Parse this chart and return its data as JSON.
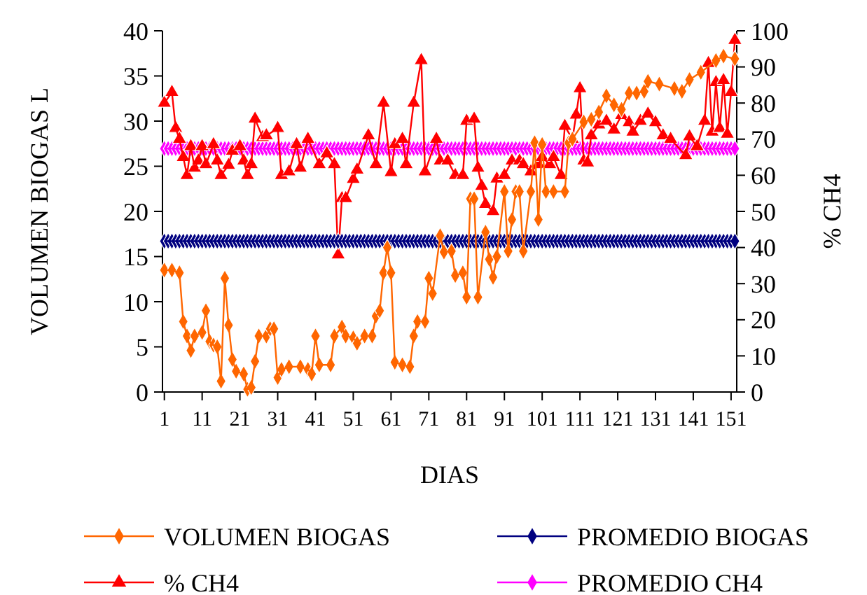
{
  "chart_data": {
    "type": "line",
    "xlabel": "DIAS",
    "ylabel": "VOLUMEN BIOGAS L",
    "y2label": "% CH4",
    "legend": "bottom",
    "grid": false,
    "xlim": [
      0.5,
      152.5
    ],
    "xticks": [
      1,
      11,
      21,
      31,
      41,
      51,
      61,
      71,
      81,
      91,
      101,
      111,
      121,
      131,
      141,
      151
    ],
    "ylim": [
      0,
      40
    ],
    "yticks": [
      0,
      5,
      10,
      15,
      20,
      25,
      30,
      35,
      40
    ],
    "y2lim": [
      0,
      100
    ],
    "y2ticks": [
      0,
      10,
      20,
      30,
      40,
      50,
      60,
      70,
      80,
      90,
      100
    ],
    "series": [
      {
        "name": "VOLUMEN BIOGAS",
        "color": "#ff6600",
        "marker": "diamond",
        "x": [
          1,
          3,
          5,
          6,
          7,
          8,
          9,
          11,
          12,
          13,
          14,
          15,
          16,
          17,
          18,
          19,
          20,
          22,
          23,
          24,
          25,
          26,
          28,
          29,
          30,
          31,
          32,
          34,
          37,
          39,
          40,
          41,
          42,
          45,
          46,
          48,
          49,
          51,
          52,
          54,
          56,
          57,
          58,
          59,
          60,
          61,
          62,
          64,
          66,
          67,
          68,
          70,
          71,
          72,
          74,
          75,
          77,
          78,
          80,
          81,
          82,
          83,
          84,
          86,
          87,
          88,
          89,
          91,
          92,
          93,
          94,
          95,
          96,
          98,
          99,
          100,
          101,
          102,
          104,
          107,
          108,
          109,
          112,
          114,
          116,
          118,
          120,
          122,
          124,
          126,
          128,
          129,
          132,
          136,
          138,
          140,
          143,
          147,
          149,
          152
        ],
        "values": [
          13.5,
          13.5,
          13.2,
          7.8,
          6.2,
          4.6,
          6.2,
          6.6,
          9.0,
          5.6,
          5.2,
          5.0,
          1.2,
          12.6,
          7.4,
          3.6,
          2.3,
          2.0,
          0.3,
          0.5,
          3.4,
          6.2,
          6.2,
          7.0,
          7.0,
          1.6,
          2.5,
          2.8,
          2.8,
          2.5,
          2.0,
          6.2,
          3.0,
          3.0,
          6.2,
          7.2,
          6.2,
          6.0,
          5.4,
          6.2,
          6.2,
          8.4,
          9.0,
          13.2,
          16.0,
          13.2,
          3.3,
          3.0,
          2.8,
          6.2,
          7.8,
          7.8,
          12.6,
          10.9,
          17.3,
          15.5,
          15.6,
          12.9,
          13.2,
          10.5,
          21.4,
          21.4,
          10.5,
          17.7,
          14.7,
          12.7,
          15.0,
          22.2,
          15.6,
          19.1,
          22.2,
          22.2,
          15.6,
          22.2,
          27.6,
          19.1,
          27.4,
          22.2,
          22.2,
          22.2,
          27.6,
          28.0,
          29.9,
          30.2,
          31.0,
          32.8,
          31.8,
          31.3,
          33.1,
          33.1,
          33.3,
          34.4,
          34.1,
          33.6,
          33.3,
          34.6,
          35.4,
          36.7,
          37.2,
          36.9
        ]
      },
      {
        "name": "PROMEDIO BIOGAS",
        "color": "#000080",
        "marker": "diamond",
        "x": [
          1,
          2,
          3,
          4,
          5,
          6,
          7,
          8,
          9,
          10,
          11,
          12,
          13,
          14,
          15,
          16,
          17,
          18,
          19,
          20,
          21,
          22,
          23,
          24,
          25,
          26,
          27,
          28,
          29,
          30,
          31,
          32,
          33,
          34,
          35,
          36,
          37,
          38,
          39,
          40,
          41,
          42,
          43,
          44,
          45,
          46,
          47,
          48,
          49,
          50,
          51,
          52,
          53,
          54,
          55,
          56,
          57,
          58,
          59,
          60,
          61,
          62,
          63,
          64,
          65,
          66,
          67,
          68,
          69,
          70,
          71,
          72,
          73,
          74,
          75,
          76,
          77,
          78,
          79,
          80,
          81,
          82,
          83,
          84,
          85,
          86,
          87,
          88,
          89,
          90,
          91,
          92,
          93,
          94,
          95,
          96,
          97,
          98,
          99,
          100,
          101,
          102,
          103,
          104,
          105,
          106,
          107,
          108,
          109,
          110,
          111,
          112,
          113,
          114,
          115,
          116,
          117,
          118,
          119,
          120,
          121,
          122,
          123,
          124,
          125,
          126,
          127,
          128,
          129,
          130,
          131,
          132,
          133,
          134,
          135,
          136,
          137,
          138,
          139,
          140,
          141,
          142,
          143,
          144,
          145,
          146,
          147,
          148,
          149,
          150,
          151,
          152
        ],
        "values": [
          16.7,
          16.7,
          16.7,
          16.7,
          16.7,
          16.7,
          16.7,
          16.7,
          16.7,
          16.7,
          16.7,
          16.7,
          16.7,
          16.7,
          16.7,
          16.7,
          16.7,
          16.7,
          16.7,
          16.7,
          16.7,
          16.7,
          16.7,
          16.7,
          16.7,
          16.7,
          16.7,
          16.7,
          16.7,
          16.7,
          16.7,
          16.7,
          16.7,
          16.7,
          16.7,
          16.7,
          16.7,
          16.7,
          16.7,
          16.7,
          16.7,
          16.7,
          16.7,
          16.7,
          16.7,
          16.7,
          16.7,
          16.7,
          16.7,
          16.7,
          16.7,
          16.7,
          16.7,
          16.7,
          16.7,
          16.7,
          16.7,
          16.7,
          16.7,
          16.7,
          16.7,
          16.7,
          16.7,
          16.7,
          16.7,
          16.7,
          16.7,
          16.7,
          16.7,
          16.7,
          16.7,
          16.7,
          16.7,
          16.7,
          16.7,
          16.7,
          16.7,
          16.7,
          16.7,
          16.7,
          16.7,
          16.7,
          16.7,
          16.7,
          16.7,
          16.7,
          16.7,
          16.7,
          16.7,
          16.7,
          16.7,
          16.7,
          16.7,
          16.7,
          16.7,
          16.7,
          16.7,
          16.7,
          16.7,
          16.7,
          16.7,
          16.7,
          16.7,
          16.7,
          16.7,
          16.7,
          16.7,
          16.7,
          16.7,
          16.7,
          16.7,
          16.7,
          16.7,
          16.7,
          16.7,
          16.7,
          16.7,
          16.7,
          16.7,
          16.7,
          16.7,
          16.7,
          16.7,
          16.7,
          16.7,
          16.7,
          16.7,
          16.7,
          16.7,
          16.7,
          16.7,
          16.7,
          16.7,
          16.7,
          16.7,
          16.7,
          16.7,
          16.7,
          16.7,
          16.7,
          16.7,
          16.7,
          16.7,
          16.7,
          16.7,
          16.7,
          16.7,
          16.7,
          16.7,
          16.7,
          16.7,
          16.7
        ]
      },
      {
        "name": "% CH4",
        "color": "#ff0000",
        "marker": "triangle",
        "axis": "y2",
        "x": [
          1,
          3,
          4,
          5,
          6,
          7,
          8,
          9,
          10,
          11,
          12,
          14,
          15,
          16,
          18,
          19,
          21,
          22,
          23,
          24,
          25,
          27,
          28,
          31,
          32,
          34,
          36,
          37,
          39,
          42,
          44,
          46,
          47,
          48,
          49,
          51,
          52,
          55,
          57,
          59,
          61,
          62,
          64,
          65,
          67,
          69,
          70,
          73,
          74,
          76,
          78,
          80,
          81,
          83,
          84,
          85,
          86,
          88,
          89,
          91,
          93,
          95,
          96,
          98,
          100,
          101,
          103,
          104,
          106,
          107,
          109,
          110,
          111,
          112,
          113,
          114,
          116,
          118,
          120,
          122,
          124,
          125,
          127,
          129,
          131,
          133,
          135,
          139,
          140,
          142,
          144,
          145,
          146,
          147,
          148,
          149,
          150,
          151,
          152
        ],
        "values": [
          80,
          83,
          73,
          70,
          65,
          60,
          68,
          62,
          64,
          68,
          63,
          68.5,
          64,
          60,
          62.8,
          66.7,
          68,
          64,
          60,
          63,
          75.6,
          70.5,
          71,
          73,
          60,
          61,
          68.5,
          62,
          70,
          63,
          66,
          63,
          38,
          53.6,
          53.6,
          58.9,
          61.5,
          71,
          63,
          80,
          60.8,
          68.5,
          70,
          63,
          80,
          91.8,
          61,
          70,
          64,
          64,
          60,
          60,
          75,
          75.6,
          62,
          57,
          52,
          50,
          59,
          60,
          64,
          64,
          63,
          61,
          63,
          65,
          63,
          65,
          60,
          73.6,
          70,
          76.7,
          84,
          64,
          63.5,
          71,
          74,
          75,
          72.6,
          76.6,
          74.6,
          72,
          75,
          77,
          74.6,
          71,
          70,
          65.5,
          70.7,
          68,
          75,
          91,
          72,
          85.7,
          73,
          86.3,
          71.4,
          83,
          97.4
        ]
      },
      {
        "name": "PROMEDIO CH4",
        "color": "#ff00ff",
        "marker": "diamond",
        "axis": "y2",
        "x": [
          1,
          2,
          3,
          4,
          5,
          6,
          7,
          8,
          9,
          10,
          11,
          12,
          13,
          14,
          15,
          16,
          17,
          18,
          19,
          20,
          21,
          22,
          23,
          24,
          25,
          26,
          27,
          28,
          29,
          30,
          31,
          32,
          33,
          34,
          35,
          36,
          37,
          38,
          39,
          40,
          41,
          42,
          43,
          44,
          45,
          46,
          47,
          48,
          49,
          50,
          51,
          52,
          53,
          54,
          55,
          56,
          57,
          58,
          59,
          60,
          61,
          62,
          63,
          64,
          65,
          66,
          67,
          68,
          69,
          70,
          71,
          72,
          73,
          74,
          75,
          76,
          77,
          78,
          79,
          80,
          81,
          82,
          83,
          84,
          85,
          86,
          87,
          88,
          89,
          90,
          91,
          92,
          93,
          94,
          95,
          96,
          97,
          98,
          99,
          100,
          101,
          102,
          103,
          104,
          105,
          106,
          107,
          108,
          109,
          110,
          111,
          112,
          113,
          114,
          115,
          116,
          117,
          118,
          119,
          120,
          121,
          122,
          123,
          124,
          125,
          126,
          127,
          128,
          129,
          130,
          131,
          132,
          133,
          134,
          135,
          136,
          137,
          138,
          139,
          140,
          141,
          142,
          143,
          144,
          145,
          146,
          147,
          148,
          149,
          150,
          151,
          152
        ],
        "values": [
          67.4,
          67.4,
          67.4,
          67.4,
          67.4,
          67.4,
          67.4,
          67.4,
          67.4,
          67.4,
          67.4,
          67.4,
          67.4,
          67.4,
          67.4,
          67.4,
          67.4,
          67.4,
          67.4,
          67.4,
          67.4,
          67.4,
          67.4,
          67.4,
          67.4,
          67.4,
          67.4,
          67.4,
          67.4,
          67.4,
          67.4,
          67.4,
          67.4,
          67.4,
          67.4,
          67.4,
          67.4,
          67.4,
          67.4,
          67.4,
          67.4,
          67.4,
          67.4,
          67.4,
          67.4,
          67.4,
          67.4,
          67.4,
          67.4,
          67.4,
          67.4,
          67.4,
          67.4,
          67.4,
          67.4,
          67.4,
          67.4,
          67.4,
          67.4,
          67.4,
          67.4,
          67.4,
          67.4,
          67.4,
          67.4,
          67.4,
          67.4,
          67.4,
          67.4,
          67.4,
          67.4,
          67.4,
          67.4,
          67.4,
          67.4,
          67.4,
          67.4,
          67.4,
          67.4,
          67.4,
          67.4,
          67.4,
          67.4,
          67.4,
          67.4,
          67.4,
          67.4,
          67.4,
          67.4,
          67.4,
          67.4,
          67.4,
          67.4,
          67.4,
          67.4,
          67.4,
          67.4,
          67.4,
          67.4,
          67.4,
          67.4,
          67.4,
          67.4,
          67.4,
          67.4,
          67.4,
          67.4,
          67.4,
          67.4,
          67.4,
          67.4,
          67.4,
          67.4,
          67.4,
          67.4,
          67.4,
          67.4,
          67.4,
          67.4,
          67.4,
          67.4,
          67.4,
          67.4,
          67.4,
          67.4,
          67.4,
          67.4,
          67.4,
          67.4,
          67.4,
          67.4,
          67.4,
          67.4,
          67.4,
          67.4,
          67.4,
          67.4,
          67.4,
          67.4,
          67.4,
          67.4,
          67.4,
          67.4,
          67.4,
          67.4,
          67.4,
          67.4,
          67.4,
          67.4,
          67.4,
          67.4,
          67.4
        ]
      }
    ]
  }
}
